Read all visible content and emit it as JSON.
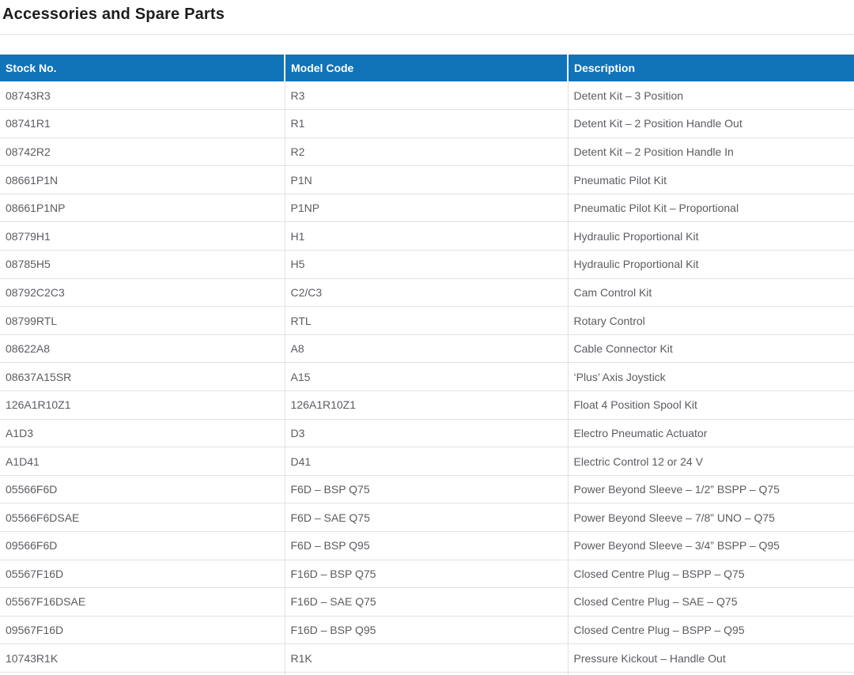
{
  "page": {
    "title": "Accessories and Spare Parts"
  },
  "colors": {
    "header_bg": "#1173b8",
    "header_text": "#ffffff",
    "body_text": "#5a5c61",
    "row_border": "#e2e2e2",
    "title_text": "#1d1d1b"
  },
  "table": {
    "columns": [
      "Stock No.",
      "Model Code",
      "Description"
    ],
    "rows": [
      [
        "08743R3",
        "R3",
        "Detent Kit – 3 Position"
      ],
      [
        "08741R1",
        "R1",
        "Detent Kit – 2 Position Handle Out"
      ],
      [
        "08742R2",
        "R2",
        "Detent Kit – 2 Position Handle In"
      ],
      [
        "08661P1N",
        "P1N",
        "Pneumatic Pilot Kit"
      ],
      [
        "08661P1NP",
        "P1NP",
        "Pneumatic Pilot Kit – Proportional"
      ],
      [
        "08779H1",
        "H1",
        "Hydraulic Proportional Kit"
      ],
      [
        "08785H5",
        "H5",
        "Hydraulic Proportional Kit"
      ],
      [
        "08792C2C3",
        "C2/C3",
        "Cam Control Kit"
      ],
      [
        "08799RTL",
        "RTL",
        "Rotary Control"
      ],
      [
        "08622A8",
        "A8",
        "Cable Connector Kit"
      ],
      [
        "08637A15SR",
        "A15",
        "‘Plus’ Axis Joystick"
      ],
      [
        "126A1R10Z1",
        "126A1R10Z1",
        "Float 4 Position Spool Kit"
      ],
      [
        "A1D3",
        "D3",
        "Electro Pneumatic Actuator"
      ],
      [
        "A1D41",
        "D41",
        "Electric Control 12 or 24 V"
      ],
      [
        "05566F6D",
        "F6D – BSP Q75",
        "Power Beyond Sleeve – 1/2” BSPP – Q75"
      ],
      [
        "05566F6DSAE",
        "F6D – SAE Q75",
        "Power Beyond Sleeve – 7/8” UNO – Q75"
      ],
      [
        "09566F6D",
        "F6D – BSP Q95",
        "Power Beyond Sleeve – 3/4” BSPP – Q95"
      ],
      [
        "05567F16D",
        "F16D – BSP Q75",
        "Closed Centre Plug – BSPP – Q75"
      ],
      [
        "05567F16DSAE",
        "F16D – SAE Q75",
        "Closed Centre Plug – SAE – Q75"
      ],
      [
        "09567F16D",
        "F16D – BSP Q95",
        "Closed Centre Plug – BSPP – Q95"
      ],
      [
        "10743R1K",
        "R1K",
        "Pressure Kickout – Handle Out"
      ]
    ]
  }
}
